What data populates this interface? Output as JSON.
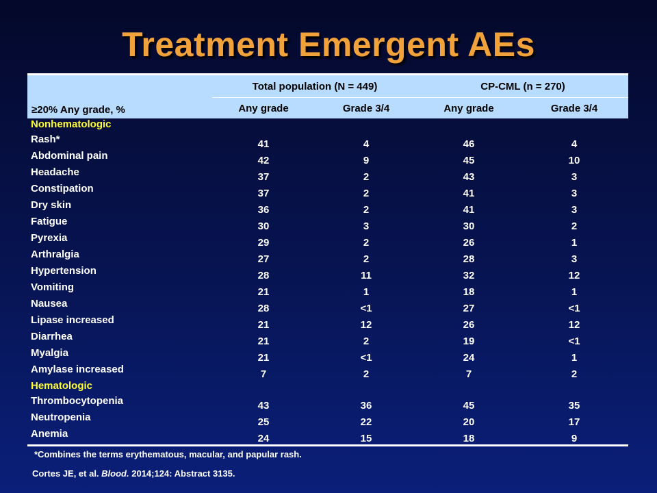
{
  "title": "Treatment Emergent AEs",
  "colors": {
    "title": "#f2a23a",
    "header_bg": "#b7dcff",
    "section_label": "#ffff33",
    "background_top": "#04082a",
    "background_bottom": "#0a1f7a"
  },
  "table": {
    "corner_label": "≥20% Any grade, %",
    "groups": [
      "Total population (N = 449)",
      "CP-CML (n = 270)"
    ],
    "subheaders": [
      "Any grade",
      "Grade 3/4",
      "Any grade",
      "Grade 3/4"
    ],
    "sections": [
      {
        "label": "Nonhematologic",
        "rows": [
          {
            "name": "Rash*",
            "values": [
              "41",
              "4",
              "46",
              "4"
            ]
          },
          {
            "name": "Abdominal pain",
            "values": [
              "42",
              "9",
              "45",
              "10"
            ]
          },
          {
            "name": "Headache",
            "values": [
              "37",
              "2",
              "43",
              "3"
            ]
          },
          {
            "name": "Constipation",
            "values": [
              "37",
              "2",
              "41",
              "3"
            ]
          },
          {
            "name": "Dry skin",
            "values": [
              "36",
              "2",
              "41",
              "3"
            ]
          },
          {
            "name": "Fatigue",
            "values": [
              "30",
              "3",
              "30",
              "2"
            ]
          },
          {
            "name": "Pyrexia",
            "values": [
              "29",
              "2",
              "26",
              "1"
            ]
          },
          {
            "name": "Arthralgia",
            "values": [
              "27",
              "2",
              "28",
              "3"
            ]
          },
          {
            "name": "Hypertension",
            "values": [
              "28",
              "11",
              "32",
              "12"
            ]
          },
          {
            "name": "Vomiting",
            "values": [
              "21",
              "1",
              "18",
              "1"
            ]
          },
          {
            "name": "Nausea",
            "values": [
              "28",
              "<1",
              "27",
              "<1"
            ]
          },
          {
            "name": "Lipase increased",
            "values": [
              "21",
              "12",
              "26",
              "12"
            ]
          },
          {
            "name": "Diarrhea",
            "values": [
              "21",
              "2",
              "19",
              "<1"
            ]
          },
          {
            "name": "Myalgia",
            "values": [
              "21",
              "<1",
              "24",
              "1"
            ]
          },
          {
            "name": "Amylase increased",
            "values": [
              "7",
              "2",
              "7",
              "2"
            ]
          }
        ]
      },
      {
        "label": "Hematologic",
        "rows": [
          {
            "name": "Thrombocytopenia",
            "values": [
              "43",
              "36",
              "45",
              "35"
            ]
          },
          {
            "name": "Neutropenia",
            "values": [
              "25",
              "22",
              "20",
              "17"
            ]
          },
          {
            "name": "Anemia",
            "values": [
              "24",
              "15",
              "18",
              "9"
            ]
          }
        ]
      }
    ]
  },
  "footnote": "*Combines the terms erythematous, macular, and papular rash.",
  "citation": {
    "authors": "Cortes JE, et al.",
    "journal": "Blood.",
    "details": "2014;124: Abstract 3135."
  }
}
